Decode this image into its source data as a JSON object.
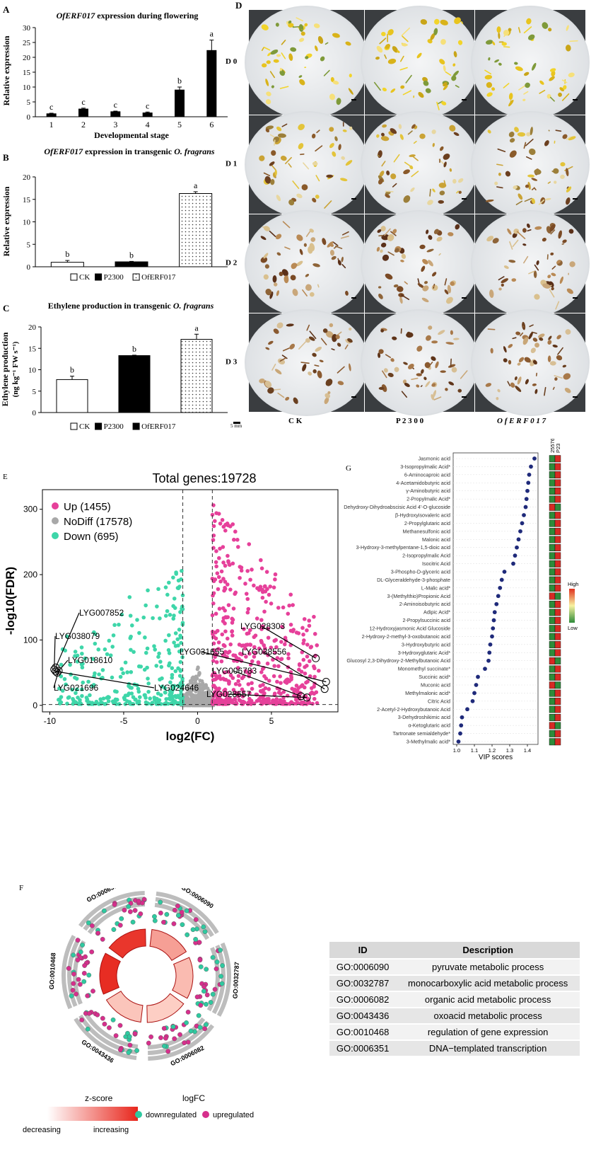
{
  "panels": {
    "A": "A",
    "B": "B",
    "C": "C",
    "D": "D",
    "E": "E",
    "F": "F",
    "G": "G"
  },
  "chart_data": [
    {
      "id": "A",
      "type": "bar",
      "title": "OfERF017 expression during flowering",
      "title_italic_part": "OfERF017",
      "title_rest": " expression during flowering",
      "xlabel": "Developmental stage",
      "ylabel": "Relative expression",
      "categories": [
        "1",
        "2",
        "3",
        "4",
        "5",
        "6"
      ],
      "values": [
        1.0,
        2.6,
        1.7,
        1.3,
        9.0,
        22.3
      ],
      "errors": [
        0.2,
        0.3,
        0.2,
        0.3,
        1.0,
        3.5
      ],
      "letters": [
        "c",
        "c",
        "c",
        "c",
        "b",
        "a"
      ],
      "ylim": [
        0,
        30
      ],
      "yticks": [
        0,
        5,
        10,
        15,
        20,
        25,
        30
      ]
    },
    {
      "id": "B",
      "type": "bar",
      "title_italic_part": "OfERF017",
      "title_rest": " expression in transgenic ",
      "title_italic_tail": "O. fragrans",
      "ylabel": "Relative expression",
      "categories": [
        "CK",
        "P2300",
        "OfERF017"
      ],
      "values": [
        1.0,
        1.1,
        16.3
      ],
      "errors": [
        0.4,
        0.1,
        0.4
      ],
      "letters": [
        "b",
        "b",
        "a"
      ],
      "fills": [
        "white",
        "black",
        "dots"
      ],
      "ylim": [
        0,
        20
      ],
      "yticks": [
        0,
        5,
        10,
        15,
        20
      ],
      "legend": [
        "CK",
        "P2300",
        "OfERF017"
      ]
    },
    {
      "id": "C",
      "type": "bar",
      "title_plain": "Ethylene production in transgenic ",
      "title_italic_tail": "O. fragrans",
      "ylabel_line1": "Ethylene production",
      "ylabel_line2": "(ng kg⁻¹ FW s⁻¹)",
      "categories": [
        "CK",
        "P2300",
        "OfERF017"
      ],
      "values": [
        7.7,
        13.3,
        17.1
      ],
      "errors": [
        0.8,
        0.1,
        1.2
      ],
      "letters": [
        "b",
        "b",
        "a"
      ],
      "fills": [
        "white",
        "black",
        "dots"
      ],
      "ylim": [
        0,
        20
      ],
      "yticks": [
        0,
        5,
        10,
        15,
        20
      ],
      "legend": [
        "CK",
        "P2300",
        "OfERF017"
      ]
    },
    {
      "id": "E",
      "type": "scatter",
      "title": "Total genes:19728",
      "xlabel": "log2(FC)",
      "ylabel": "-log10(FDR)",
      "xlim": [
        -10.5,
        9.5
      ],
      "ylim": [
        -10,
        330
      ],
      "xticks": [
        -10,
        -5,
        0,
        5
      ],
      "yticks": [
        0,
        100,
        200,
        300
      ],
      "thresholds": {
        "x": [
          -1,
          1
        ],
        "y": 1.3
      },
      "legend": [
        {
          "label": "Up (1455)",
          "color": "#e6409a"
        },
        {
          "label": "NoDiff (17578)",
          "color": "#a8a8a8"
        },
        {
          "label": "Down (695)",
          "color": "#3ed6a9"
        }
      ],
      "labeled_points": [
        {
          "label": "LYG007852",
          "x": -9.6,
          "y": 58
        },
        {
          "label": "LYG038079",
          "x": -9.7,
          "y": 55
        },
        {
          "label": "LYG018610",
          "x": -9.5,
          "y": 50
        },
        {
          "label": "LYG021696",
          "x": -9.4,
          "y": 53
        },
        {
          "label": "LYG024646",
          "x": -9.6,
          "y": 52
        },
        {
          "label": "LYG028303",
          "x": 8.0,
          "y": 72
        },
        {
          "label": "LYG031655",
          "x": 8.7,
          "y": 36
        },
        {
          "label": "LYG038556",
          "x": 8.6,
          "y": 25
        },
        {
          "label": "LYG006783",
          "x": 7.0,
          "y": 14
        },
        {
          "label": "LYG028657",
          "x": 7.4,
          "y": 12
        }
      ]
    },
    {
      "id": "G",
      "type": "scatter",
      "xlabel": "VIP scores",
      "xlim": [
        0.98,
        1.46
      ],
      "xticks": [
        1.0,
        1.1,
        1.2,
        1.3,
        1.4
      ],
      "heat_columns": [
        "25576-OE",
        "P23"
      ],
      "heat_legend": {
        "high": "High",
        "low": "Low"
      },
      "items": [
        {
          "name": "Jasmonic acid",
          "vip": 1.44,
          "heat": [
            "g",
            "r"
          ]
        },
        {
          "name": "3-Isopropylmalic Acid*",
          "vip": 1.42,
          "heat": [
            "g",
            "r"
          ]
        },
        {
          "name": "6-Aminocaproic acid",
          "vip": 1.41,
          "heat": [
            "g",
            "r"
          ]
        },
        {
          "name": "4-Acetamidobutyric acid",
          "vip": 1.405,
          "heat": [
            "g",
            "r"
          ]
        },
        {
          "name": "γ-Aminobutyric acid",
          "vip": 1.4,
          "heat": [
            "g",
            "r"
          ]
        },
        {
          "name": "2-Propylmalic Acid*",
          "vip": 1.395,
          "heat": [
            "g",
            "r"
          ]
        },
        {
          "name": "Dehydroxy-Dihydroabscisic Acid 4'-O-glucoside",
          "vip": 1.39,
          "heat": [
            "r",
            "g"
          ]
        },
        {
          "name": "β-Hydroxyisovaleric acid",
          "vip": 1.38,
          "heat": [
            "g",
            "r"
          ]
        },
        {
          "name": "2-Propylglutaric acid",
          "vip": 1.37,
          "heat": [
            "g",
            "r"
          ]
        },
        {
          "name": "Methanesulfonic acid",
          "vip": 1.36,
          "heat": [
            "g",
            "r"
          ]
        },
        {
          "name": "Malonic acid",
          "vip": 1.35,
          "heat": [
            "g",
            "r"
          ]
        },
        {
          "name": "3-Hydroxy-3-methylpentane-1,5-dioic acid",
          "vip": 1.34,
          "heat": [
            "g",
            "r"
          ]
        },
        {
          "name": "2-Isopropylmalic Acid",
          "vip": 1.33,
          "heat": [
            "g",
            "r"
          ]
        },
        {
          "name": "Isocitric Acid",
          "vip": 1.32,
          "heat": [
            "g",
            "r"
          ]
        },
        {
          "name": "3-Phospho-D-glyceric acid",
          "vip": 1.27,
          "heat": [
            "g",
            "r"
          ]
        },
        {
          "name": "DL-Glyceraldehyde-3-phosphate",
          "vip": 1.255,
          "heat": [
            "g",
            "r"
          ]
        },
        {
          "name": "L-Malic acid*",
          "vip": 1.245,
          "heat": [
            "g",
            "r"
          ]
        },
        {
          "name": "3-(Methylthio)Propionic Acid",
          "vip": 1.235,
          "heat": [
            "r",
            "g"
          ]
        },
        {
          "name": "2-Aminoisobutyric acid",
          "vip": 1.225,
          "heat": [
            "g",
            "r"
          ]
        },
        {
          "name": "Adipic Acid*",
          "vip": 1.215,
          "heat": [
            "g",
            "r"
          ]
        },
        {
          "name": "2-Propylsuccinic acid",
          "vip": 1.21,
          "heat": [
            "g",
            "r"
          ]
        },
        {
          "name": "12-Hydroxyjasmonic Acid Glucoside",
          "vip": 1.205,
          "heat": [
            "g",
            "r"
          ]
        },
        {
          "name": "2-Hydroxy-2-methyl-3-oxobutanoic acid",
          "vip": 1.2,
          "heat": [
            "g",
            "r"
          ]
        },
        {
          "name": "3-Hydroxybutyric acid",
          "vip": 1.19,
          "heat": [
            "g",
            "r"
          ]
        },
        {
          "name": "3-Hydroxyglutaric Acid*",
          "vip": 1.185,
          "heat": [
            "g",
            "r"
          ]
        },
        {
          "name": "Glucosyl 2,3-Dihydroxy-2-Methylbutanoic Acid",
          "vip": 1.18,
          "heat": [
            "r",
            "g"
          ]
        },
        {
          "name": "Monomethyl succinate*",
          "vip": 1.16,
          "heat": [
            "g",
            "r"
          ]
        },
        {
          "name": "Succinic acid*",
          "vip": 1.12,
          "heat": [
            "g",
            "r"
          ]
        },
        {
          "name": "Muconic acid",
          "vip": 1.11,
          "heat": [
            "r",
            "g"
          ]
        },
        {
          "name": "Methylmalonic acid*",
          "vip": 1.1,
          "heat": [
            "g",
            "r"
          ]
        },
        {
          "name": "Citric Acid",
          "vip": 1.09,
          "heat": [
            "g",
            "r"
          ]
        },
        {
          "name": "2-Acetyl-2-Hydroxybutanoic Acid",
          "vip": 1.06,
          "heat": [
            "g",
            "r"
          ]
        },
        {
          "name": "3-Dehydroshikimic acid",
          "vip": 1.03,
          "heat": [
            "g",
            "r"
          ]
        },
        {
          "name": "α-Ketoglutaric acid",
          "vip": 1.025,
          "heat": [
            "r",
            "g"
          ]
        },
        {
          "name": "Tartronate semialdehyde*",
          "vip": 1.02,
          "heat": [
            "g",
            "r"
          ]
        },
        {
          "name": "3-Methylmalic acid*",
          "vip": 1.01,
          "heat": [
            "g",
            "r"
          ]
        }
      ]
    },
    {
      "id": "F",
      "type": "other",
      "terms": [
        {
          "id": "GO:0006090",
          "zscore": 0.35
        },
        {
          "id": "GO:0032787",
          "zscore": 0.2
        },
        {
          "id": "GO:0006082",
          "zscore": 0.1
        },
        {
          "id": "GO:0043436",
          "zscore": 0.15
        },
        {
          "id": "GO:0010468",
          "zscore": 0.95
        },
        {
          "id": "GO:0006351",
          "zscore": 0.9
        }
      ],
      "legend_zscore_title": "z-score",
      "legend_zscore_low": "decreasing",
      "legend_zscore_high": "increasing",
      "legend_logfc_title": "logFC",
      "legend_down": "downregulated",
      "legend_up": "upregulated",
      "colors": {
        "down": "#2fc9a0",
        "up": "#d62f8c"
      }
    }
  ],
  "photos": {
    "rows": [
      "D 0",
      "D 1",
      "D 2",
      "D 3"
    ],
    "cols": [
      "C K",
      "P 2 3 0 0",
      "O f E R F 0 1 7"
    ],
    "scale_label": "5 mm"
  },
  "go_table": {
    "headers": [
      "ID",
      "Description"
    ],
    "rows": [
      [
        "GO:0006090",
        "pyruvate metabolic process"
      ],
      [
        "GO:0032787",
        "monocarboxylic acid metabolic process"
      ],
      [
        "GO:0006082",
        "organic acid metabolic process"
      ],
      [
        "GO:0043436",
        "oxoacid metabolic process"
      ],
      [
        "GO:0010468",
        "regulation of gene expression"
      ],
      [
        "GO:0006351",
        "DNA−templated transcription"
      ]
    ]
  }
}
